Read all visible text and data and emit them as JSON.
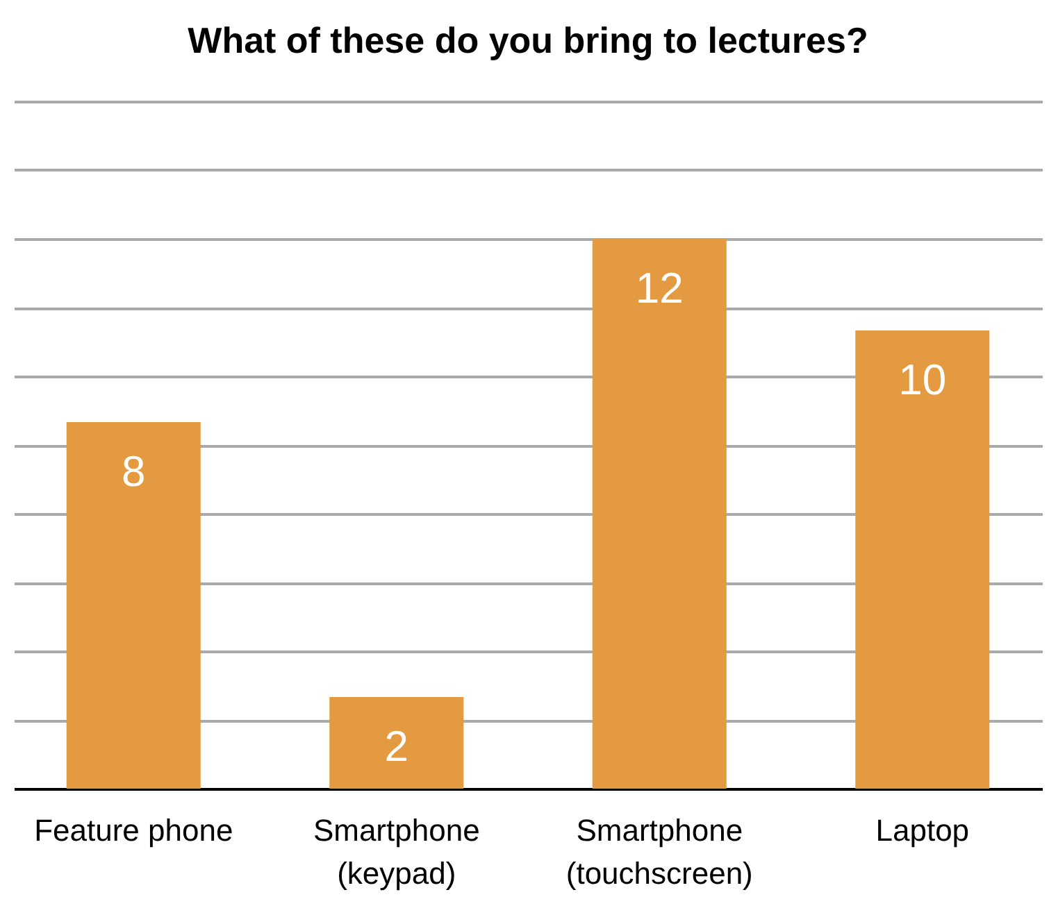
{
  "chart_data": {
    "type": "bar",
    "title": "What of these do you bring to lectures?",
    "categories": [
      "Feature phone",
      "Smartphone\n(keypad)",
      "Smartphone\n(touchscreen)",
      "Laptop"
    ],
    "values": [
      8,
      2,
      12,
      10
    ],
    "color": "#e39a40",
    "data_labels": true,
    "ylim": [
      0,
      15
    ],
    "yticks": [
      {
        "value": 0,
        "label": null
      },
      {
        "value": 1.5,
        "label": null
      },
      {
        "value": 3,
        "label": null
      },
      {
        "value": 4.5,
        "label": null
      },
      {
        "value": 6,
        "label": null
      },
      {
        "value": 7.5,
        "label": null
      },
      {
        "value": 9,
        "label": null
      },
      {
        "value": 10.5,
        "label": null
      },
      {
        "value": 12,
        "label": null
      },
      {
        "value": 13.5,
        "label": null
      },
      {
        "value": 15,
        "label": null
      }
    ],
    "grid": "y",
    "tick_labels": "x"
  }
}
